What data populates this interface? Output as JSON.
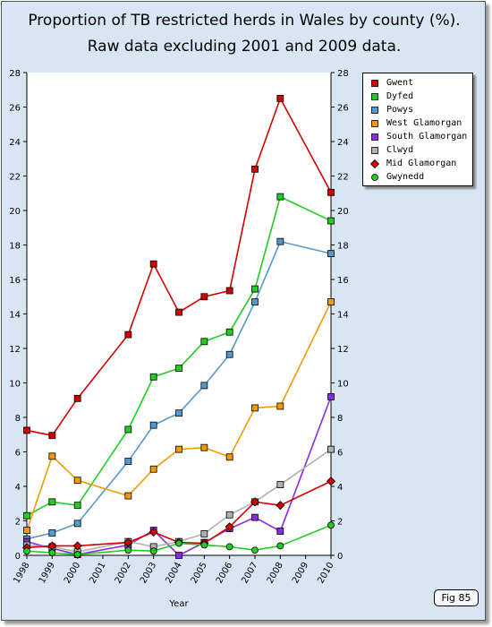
{
  "title_line1": "Proportion of TB restricted herds in Wales by county (%).",
  "title_line2": "Raw data excluding 2001 and 2009 data.",
  "figure_label": "Fig 85",
  "chart_data": {
    "type": "line",
    "title": "Proportion of TB restricted herds in Wales by county (%). Raw data excluding 2001 and 2009 data.",
    "xlabel": "Year",
    "ylabel": "",
    "x_ticks": [
      "1998",
      "1999",
      "2000",
      "2001",
      "2002",
      "2003",
      "2004",
      "2005",
      "2006",
      "2007",
      "2008",
      "2009",
      "2010"
    ],
    "y_ticks": [
      0,
      2,
      4,
      6,
      8,
      10,
      12,
      14,
      16,
      18,
      20,
      22,
      24,
      26,
      28
    ],
    "ylim": [
      0,
      28
    ],
    "xlim": [
      1998,
      2010
    ],
    "y_axis_right": true,
    "grid": false,
    "legend_position": "top-right",
    "x": [
      1998,
      1999,
      2000,
      2002,
      2003,
      2004,
      2005,
      2006,
      2007,
      2008,
      2010
    ],
    "series": [
      {
        "name": "Gwent",
        "color": "#d40000",
        "marker": "square",
        "values": [
          7.25,
          6.95,
          9.1,
          12.8,
          16.9,
          14.1,
          15.0,
          15.35,
          22.4,
          26.5,
          21.05
        ]
      },
      {
        "name": "Dyfed",
        "color": "#22cc22",
        "marker": "square",
        "values": [
          2.3,
          3.1,
          2.9,
          7.3,
          10.35,
          10.85,
          12.4,
          12.95,
          15.45,
          20.8,
          19.4
        ]
      },
      {
        "name": "Powys",
        "color": "#5599cc",
        "marker": "square",
        "values": [
          0.95,
          1.3,
          1.85,
          5.45,
          7.55,
          8.25,
          9.85,
          11.65,
          14.7,
          18.2,
          17.5
        ]
      },
      {
        "name": "West Glamorgan",
        "color": "#f29b00",
        "marker": "square",
        "values": [
          1.45,
          5.75,
          4.35,
          3.45,
          5.0,
          6.15,
          6.25,
          5.7,
          8.55,
          8.65,
          14.7
        ]
      },
      {
        "name": "South Glamorgan",
        "color": "#8a2be2",
        "marker": "square",
        "values": [
          0.8,
          0.4,
          0.05,
          0.6,
          1.45,
          0.0,
          0.75,
          1.55,
          2.2,
          1.4,
          9.2
        ]
      },
      {
        "name": "Clwyd",
        "color": "#b0b0b0",
        "marker": "square",
        "values": [
          0.6,
          0.5,
          0.2,
          0.8,
          0.5,
          0.8,
          1.25,
          2.35,
          3.1,
          4.1,
          6.15
        ]
      },
      {
        "name": "Mid Glamorgan",
        "color": "#d40000",
        "marker": "diamond",
        "values": [
          0.45,
          0.55,
          0.55,
          0.75,
          1.35,
          0.75,
          0.7,
          1.65,
          3.1,
          2.9,
          4.3
        ]
      },
      {
        "name": "Gwynedd",
        "color": "#22cc22",
        "marker": "circle",
        "values": [
          0.25,
          0.15,
          0.05,
          0.3,
          0.25,
          0.7,
          0.6,
          0.5,
          0.3,
          0.55,
          1.75
        ]
      }
    ]
  }
}
